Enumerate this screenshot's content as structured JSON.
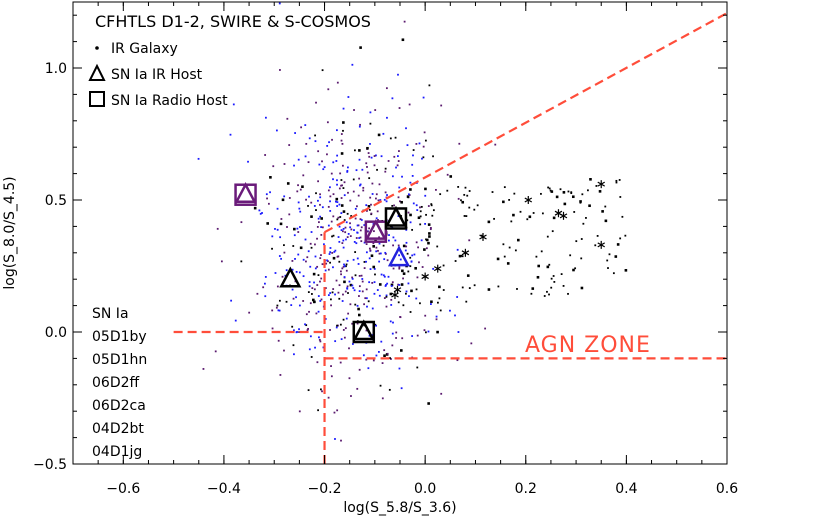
{
  "chart_data": {
    "type": "scatter",
    "title": "CFHTLS D1-2, SWIRE & S-COSMOS",
    "xlabel": "log(S_5.8/S_3.6)",
    "ylabel": "log(S_8.0/S_4.5)",
    "xlim": [
      -0.7,
      0.6
    ],
    "ylim": [
      -0.5,
      1.25
    ],
    "xticks": [
      -0.6,
      -0.4,
      -0.2,
      0.0,
      0.2,
      0.4,
      0.6
    ],
    "xtick_labels": [
      "−0.6",
      "−0.4",
      "−0.2",
      "0.0",
      "0.2",
      "0.4",
      "0.6"
    ],
    "yticks": [
      -0.5,
      0.0,
      0.5,
      1.0
    ],
    "ytick_labels": [
      "−0.5",
      "0.0",
      "0.5",
      "1.0"
    ],
    "legend": {
      "position": "top-left",
      "entries": [
        {
          "marker": "dot",
          "label": "IR Galaxy"
        },
        {
          "marker": "triangle",
          "label": "SN Ia IR Host"
        },
        {
          "marker": "square",
          "label": "SN Ia Radio Host"
        }
      ]
    },
    "annotation": "AGN ZONE",
    "sn_list": {
      "header": "SN Ia",
      "names": [
        "05D1by",
        "05D1hn",
        "06D2ff",
        "06D2ca",
        "04D2bt",
        "04D1jg"
      ]
    },
    "agn_wedge": {
      "color": "#ff4d3a",
      "horizontal_left": {
        "x": [
          -0.5,
          -0.2
        ],
        "y": [
          0.0,
          0.0
        ]
      },
      "vertical": {
        "x": [
          -0.2,
          -0.2
        ],
        "y": [
          -0.5,
          0.378
        ]
      },
      "diagonal": {
        "x": [
          -0.2,
          0.6
        ],
        "y": [
          0.378,
          1.208
        ]
      },
      "bottom": {
        "x": [
          -0.2,
          0.6
        ],
        "y": [
          -0.1,
          -0.1
        ]
      }
    },
    "sn_hosts": [
      {
        "marker": "triangle",
        "color": "#6a1b7a",
        "x": -0.357,
        "y": 0.52
      },
      {
        "marker": "square",
        "color": "#6a1b7a",
        "x": -0.357,
        "y": 0.52
      },
      {
        "marker": "triangle",
        "color": "#000000",
        "x": -0.268,
        "y": 0.2
      },
      {
        "marker": "triangle",
        "color": "#6a1b7a",
        "x": -0.098,
        "y": 0.38
      },
      {
        "marker": "square",
        "color": "#6a1b7a",
        "x": -0.098,
        "y": 0.38
      },
      {
        "marker": "triangle",
        "color": "#000000",
        "x": -0.058,
        "y": 0.43
      },
      {
        "marker": "square",
        "color": "#000000",
        "x": -0.058,
        "y": 0.43
      },
      {
        "marker": "triangle",
        "color": "#2222dd",
        "x": -0.052,
        "y": 0.28
      },
      {
        "marker": "triangle",
        "color": "#000000",
        "x": -0.122,
        "y": 0.0
      },
      {
        "marker": "square",
        "color": "#000000",
        "x": -0.122,
        "y": 0.0
      }
    ],
    "stars": [
      {
        "x": 0.35,
        "y": 0.56
      },
      {
        "x": 0.205,
        "y": 0.5
      },
      {
        "x": 0.265,
        "y": 0.45
      },
      {
        "x": 0.275,
        "y": 0.44
      },
      {
        "x": 0.35,
        "y": 0.33
      },
      {
        "x": 0.115,
        "y": 0.36
      },
      {
        "x": 0.08,
        "y": 0.3
      },
      {
        "x": 0.025,
        "y": 0.24
      },
      {
        "x": 0.0,
        "y": 0.21
      },
      {
        "x": -0.055,
        "y": 0.16
      },
      {
        "x": -0.06,
        "y": 0.14
      }
    ],
    "dot_colors": [
      "#000000",
      "#1a1aff",
      "#5a1a6e"
    ],
    "dot_cloud": {
      "center_x": -0.15,
      "center_y": 0.33,
      "spread_x": 0.09,
      "spread_y": 0.26,
      "count": 900
    }
  }
}
